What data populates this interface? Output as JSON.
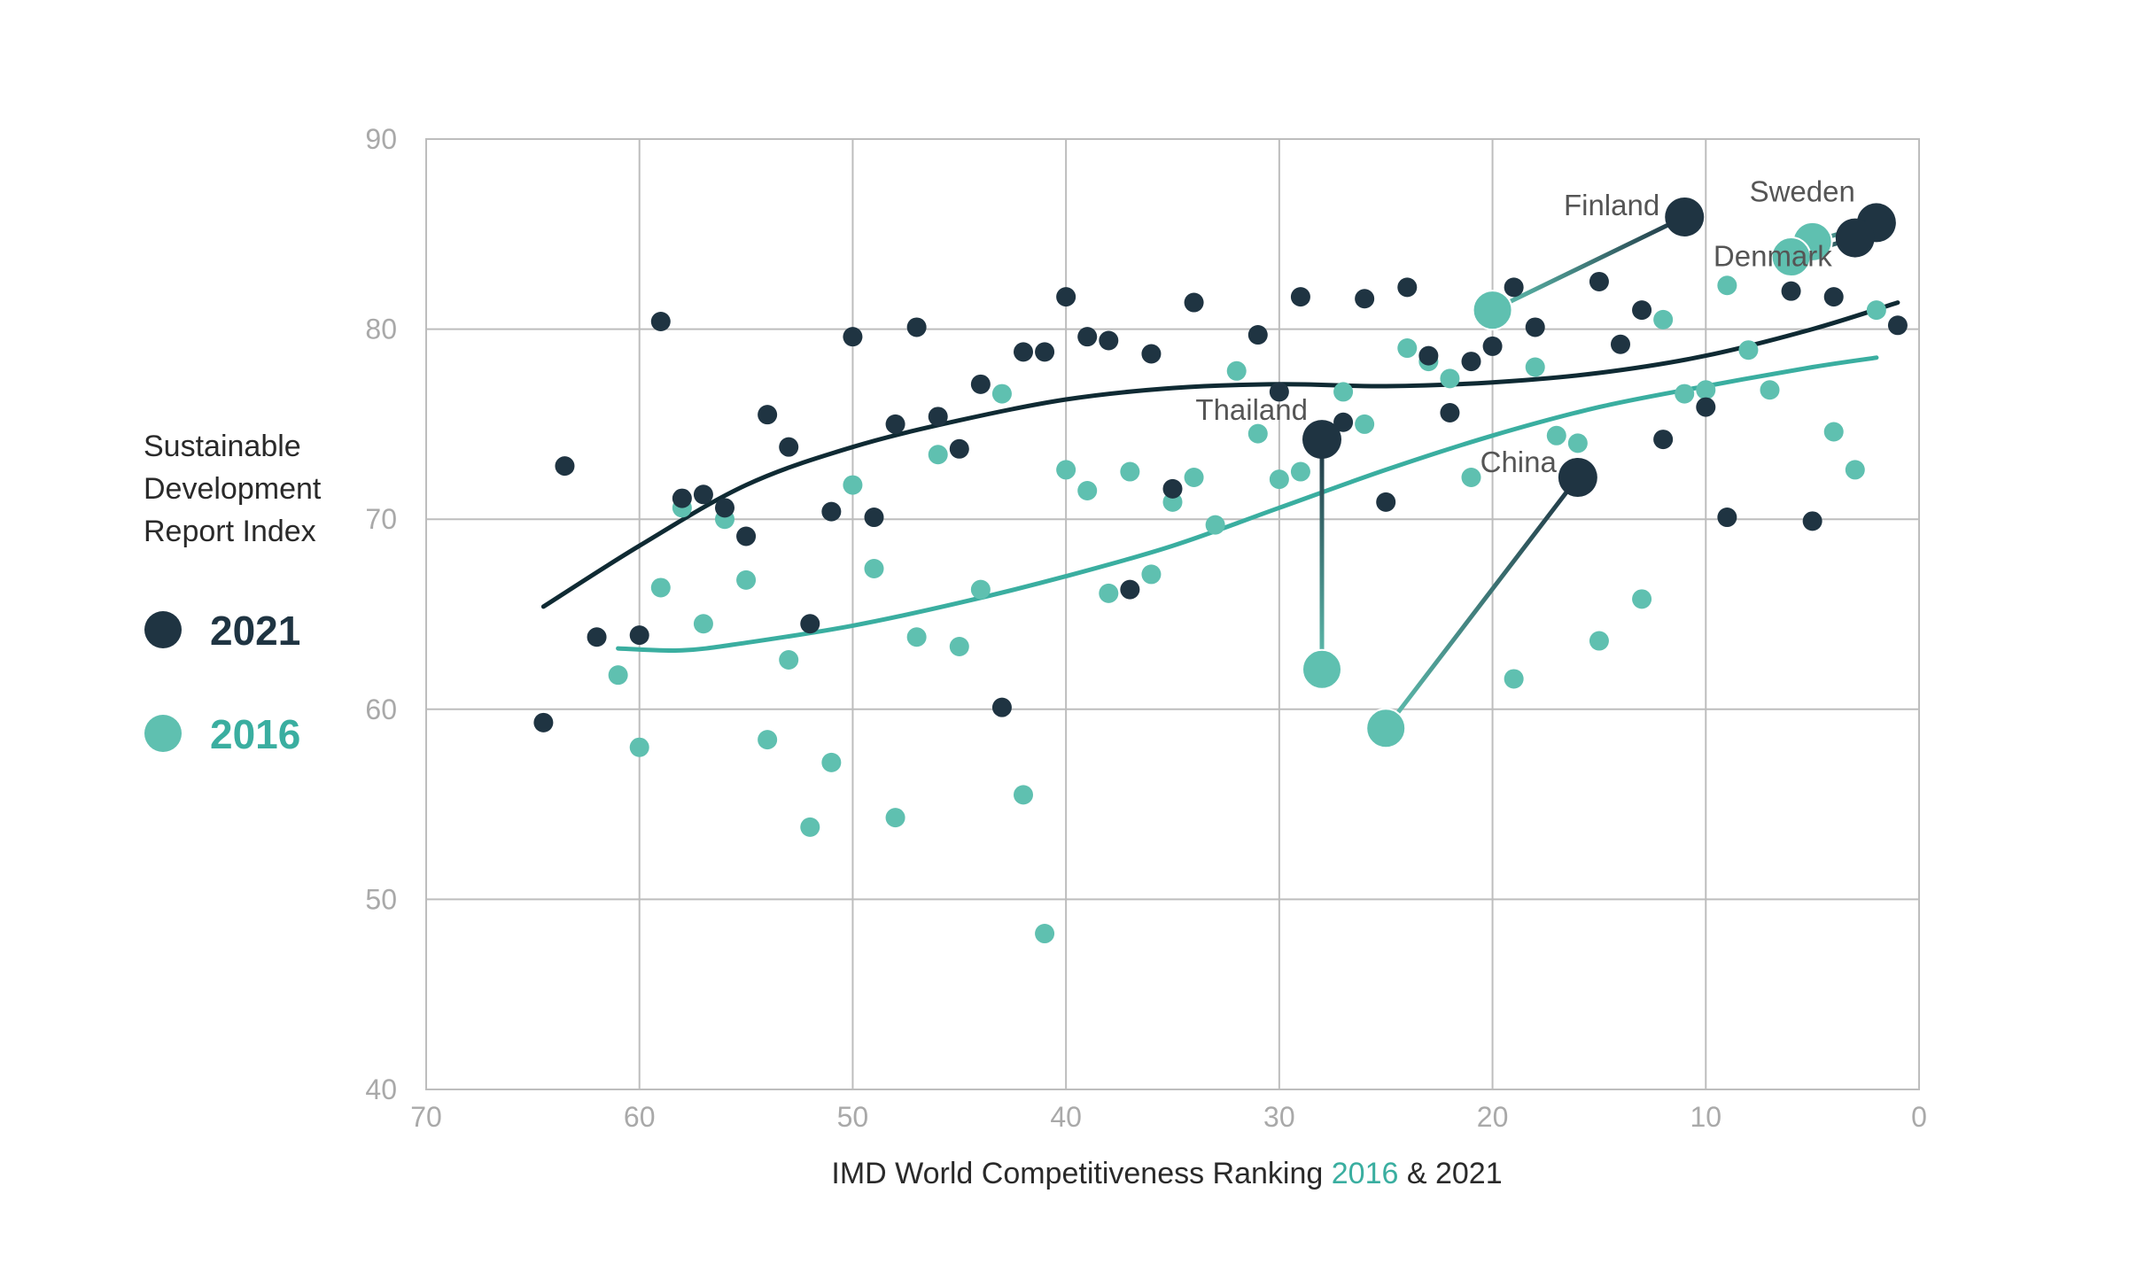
{
  "chart_data": {
    "type": "scatter",
    "ylabel": [
      "Sustainable",
      "Development",
      "Report Index"
    ],
    "xlabel": {
      "prefix": "IMD World Competitiveness Ranking ",
      "highlight": "2016",
      "suffix": " & 2021"
    },
    "xlim": [
      70,
      0
    ],
    "ylim": [
      40,
      90
    ],
    "x_ticks": [
      70,
      60,
      50,
      40,
      30,
      20,
      10,
      0
    ],
    "y_ticks": [
      90,
      80,
      70,
      60,
      50,
      40
    ],
    "grid": true,
    "legend_position": "left",
    "colors": {
      "s2021": "#1f3442",
      "s2016": "#5fc0b0",
      "trend2021": "#0f2a33",
      "trend2016": "#3aaea0",
      "grid": "#bdbdbd"
    },
    "series": [
      {
        "name": "2021",
        "points": [
          [
            64.5,
            59.3
          ],
          [
            63.5,
            72.8
          ],
          [
            62,
            63.8
          ],
          [
            60,
            63.9
          ],
          [
            59,
            80.4
          ],
          [
            58,
            71.1
          ],
          [
            57,
            71.3
          ],
          [
            56,
            70.6
          ],
          [
            55,
            69.1
          ],
          [
            54,
            75.5
          ],
          [
            53,
            73.8
          ],
          [
            52,
            64.5
          ],
          [
            51,
            70.4
          ],
          [
            50,
            79.6
          ],
          [
            49,
            70.1
          ],
          [
            48,
            75
          ],
          [
            47,
            80.1
          ],
          [
            46,
            75.4
          ],
          [
            45,
            73.7
          ],
          [
            44,
            77.1
          ],
          [
            43,
            60.1
          ],
          [
            42,
            78.8
          ],
          [
            41,
            78.8
          ],
          [
            40,
            81.7
          ],
          [
            39,
            79.6
          ],
          [
            38,
            79.4
          ],
          [
            37,
            66.3
          ],
          [
            36,
            78.7
          ],
          [
            35,
            71.6
          ],
          [
            34,
            81.4
          ],
          [
            31,
            79.7
          ],
          [
            30,
            76.7
          ],
          [
            29,
            81.7
          ],
          [
            27,
            75.1
          ],
          [
            26,
            81.6
          ],
          [
            25,
            70.9
          ],
          [
            24,
            82.2
          ],
          [
            23,
            78.6
          ],
          [
            22,
            75.6
          ],
          [
            21,
            78.3
          ],
          [
            20,
            79.1
          ],
          [
            19,
            82.2
          ],
          [
            18,
            80.1
          ],
          [
            15,
            82.5
          ],
          [
            14,
            79.2
          ],
          [
            13,
            81
          ],
          [
            12,
            74.2
          ],
          [
            10,
            75.9
          ],
          [
            9,
            70.1
          ],
          [
            6,
            82
          ],
          [
            5,
            69.9
          ],
          [
            4,
            81.7
          ],
          [
            1,
            80.2
          ]
        ]
      },
      {
        "name": "2016",
        "points": [
          [
            61,
            61.8
          ],
          [
            60,
            58
          ],
          [
            59,
            66.4
          ],
          [
            58,
            70.6
          ],
          [
            57,
            64.5
          ],
          [
            56,
            70
          ],
          [
            55,
            66.8
          ],
          [
            54,
            58.4
          ],
          [
            53,
            62.6
          ],
          [
            52,
            53.8
          ],
          [
            51,
            57.2
          ],
          [
            50,
            71.8
          ],
          [
            49,
            67.4
          ],
          [
            48,
            54.3
          ],
          [
            47,
            63.8
          ],
          [
            46,
            73.4
          ],
          [
            45,
            63.3
          ],
          [
            44,
            66.3
          ],
          [
            43,
            76.6
          ],
          [
            42,
            55.5
          ],
          [
            41,
            48.2
          ],
          [
            40,
            72.6
          ],
          [
            39,
            71.5
          ],
          [
            38,
            66.1
          ],
          [
            37,
            72.5
          ],
          [
            36,
            67.1
          ],
          [
            35,
            70.9
          ],
          [
            34,
            72.2
          ],
          [
            33,
            69.7
          ],
          [
            32,
            77.8
          ],
          [
            31,
            74.5
          ],
          [
            30,
            72.1
          ],
          [
            29,
            72.5
          ],
          [
            27,
            76.7
          ],
          [
            26,
            75
          ],
          [
            24,
            79
          ],
          [
            23,
            78.3
          ],
          [
            22,
            77.4
          ],
          [
            21,
            72.2
          ],
          [
            19,
            61.6
          ],
          [
            18,
            78
          ],
          [
            17,
            74.4
          ],
          [
            16,
            74
          ],
          [
            15,
            63.6
          ],
          [
            13,
            65.8
          ],
          [
            12,
            80.5
          ],
          [
            11,
            76.6
          ],
          [
            10,
            76.8
          ],
          [
            9,
            82.3
          ],
          [
            8,
            78.9
          ],
          [
            7,
            76.8
          ],
          [
            4,
            74.6
          ],
          [
            3,
            72.6
          ],
          [
            2,
            81
          ]
        ]
      }
    ],
    "highlighted": [
      {
        "label": "Finland",
        "x2016": 20,
        "y2016": 81,
        "x2021": 11,
        "y2021": 85.9
      },
      {
        "label": "Sweden",
        "x2016": 5,
        "y2016": 84.6,
        "x2021": 2,
        "y2021": 85.6
      },
      {
        "label": "Denmark",
        "x2016": 6,
        "y2016": 83.8,
        "x2021": 3,
        "y2021": 84.8
      },
      {
        "label": "Thailand",
        "x2016": 28,
        "y2016": 62.1,
        "x2021": 28,
        "y2021": 74.2
      },
      {
        "label": "China",
        "x2016": 25,
        "y2016": 59,
        "x2021": 16,
        "y2021": 72.2
      }
    ],
    "trend_2021": [
      [
        64.5,
        65.4
      ],
      [
        60,
        68.6
      ],
      [
        55,
        71.8
      ],
      [
        50,
        73.8
      ],
      [
        45,
        75.2
      ],
      [
        40,
        76.3
      ],
      [
        35,
        76.9
      ],
      [
        30,
        77.1
      ],
      [
        25,
        77
      ],
      [
        20,
        77.2
      ],
      [
        15,
        77.7
      ],
      [
        10,
        78.6
      ],
      [
        5,
        80
      ],
      [
        1,
        81.4
      ]
    ],
    "trend_2016": [
      [
        61,
        63.2
      ],
      [
        58,
        63.1
      ],
      [
        55,
        63.5
      ],
      [
        50,
        64.4
      ],
      [
        45,
        65.6
      ],
      [
        40,
        67
      ],
      [
        35,
        68.6
      ],
      [
        30,
        70.6
      ],
      [
        25,
        72.6
      ],
      [
        20,
        74.4
      ],
      [
        15,
        75.9
      ],
      [
        10,
        77
      ],
      [
        5,
        78
      ],
      [
        2,
        78.5
      ]
    ]
  },
  "legend": {
    "label_2021": "2021",
    "label_2016": "2016"
  }
}
